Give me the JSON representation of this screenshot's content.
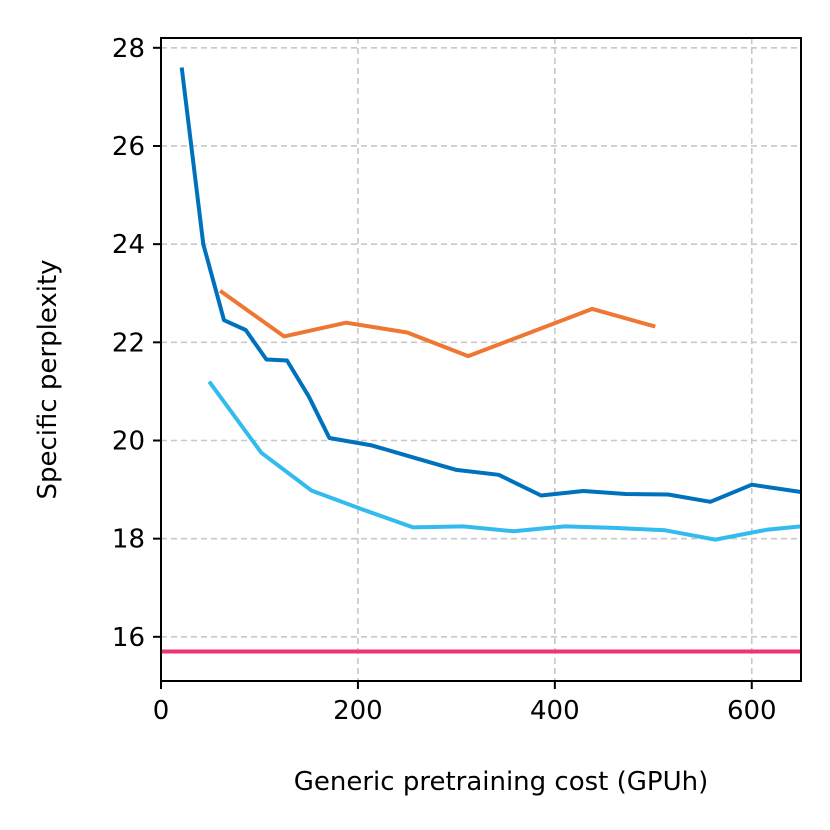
{
  "chart_data": {
    "type": "line",
    "title": "",
    "xlabel": "Generic pretraining cost (GPUh)",
    "ylabel": "Specific perplexity",
    "xlim": [
      0,
      650
    ],
    "ylim": [
      15.1,
      28.2
    ],
    "xticks": [
      0,
      200,
      400,
      600
    ],
    "yticks": [
      16,
      18,
      20,
      22,
      24,
      26,
      28
    ],
    "grid": true,
    "legend": "none",
    "series": [
      {
        "name": "dark-blue",
        "color": "#0072BD",
        "x": [
          21,
          43,
          64,
          86,
          107,
          128,
          150,
          171,
          214,
          257,
          300,
          343,
          386,
          429,
          472,
          515,
          558,
          600,
          650
        ],
        "y": [
          27.6,
          24.0,
          22.45,
          22.25,
          21.65,
          21.63,
          20.9,
          20.05,
          19.9,
          19.65,
          19.4,
          19.3,
          18.88,
          18.97,
          18.91,
          18.9,
          18.75,
          19.1,
          18.95
        ]
      },
      {
        "name": "orange",
        "color": "#EE7733",
        "x": [
          60,
          125,
          188,
          250,
          312,
          438,
          502
        ],
        "y": [
          23.05,
          22.12,
          22.4,
          22.2,
          21.72,
          22.68,
          22.32
        ]
      },
      {
        "name": "light-blue",
        "color": "#33BBEE",
        "x": [
          49,
          102,
          153,
          204,
          256,
          307,
          358,
          410,
          460,
          512,
          563,
          615,
          650
        ],
        "y": [
          21.2,
          19.75,
          18.98,
          18.6,
          18.23,
          18.25,
          18.15,
          18.25,
          18.22,
          18.17,
          17.98,
          18.18,
          18.25
        ]
      },
      {
        "name": "pink-baseline",
        "color": "#EE3377",
        "x": [
          0,
          650
        ],
        "y": [
          15.7,
          15.7
        ]
      }
    ]
  }
}
